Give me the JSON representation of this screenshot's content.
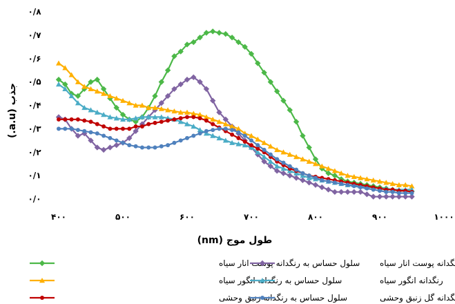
{
  "chart_data": {
    "type": "line",
    "xlabel": "طول موج (nm)",
    "ylabel": "جذب (a.u.)",
    "xlim": [
      400,
      1000
    ],
    "ylim": [
      0,
      0.8
    ],
    "x_ticks": [
      "۴۰۰",
      "۵۰۰",
      "۶۰۰",
      "۷۰۰",
      "۸۰۰",
      "۹۰۰",
      "۱۰۰۰"
    ],
    "x_tick_values": [
      400,
      500,
      600,
      700,
      800,
      900,
      1000
    ],
    "y_ticks": [
      "۰/۰",
      "۰/۱",
      "۰/۲",
      "۰/۳",
      "۰/۴",
      "۰/۵",
      "۰/۶",
      "۰/۷",
      "۰/۸"
    ],
    "y_tick_values": [
      0,
      0.1,
      0.2,
      0.3,
      0.4,
      0.5,
      0.6,
      0.7,
      0.8
    ],
    "grid": false,
    "legend_position": "bottom",
    "series": [
      {
        "name": "سلول حساس به رنگدانه پوست انار سیاه",
        "color": "#4cb848",
        "marker": "diamond",
        "x": [
          400,
          410,
          420,
          430,
          440,
          450,
          460,
          470,
          480,
          490,
          500,
          510,
          520,
          530,
          540,
          550,
          560,
          570,
          580,
          590,
          600,
          610,
          620,
          630,
          640,
          650,
          660,
          670,
          680,
          690,
          700,
          710,
          720,
          730,
          740,
          750,
          760,
          770,
          780,
          790,
          800,
          810,
          820,
          830,
          840,
          850,
          860,
          870,
          880,
          890,
          900,
          910,
          920,
          930,
          940,
          950
        ],
        "y": [
          0.51,
          0.49,
          0.45,
          0.44,
          0.47,
          0.5,
          0.51,
          0.47,
          0.43,
          0.39,
          0.36,
          0.34,
          0.33,
          0.35,
          0.39,
          0.44,
          0.5,
          0.55,
          0.61,
          0.63,
          0.66,
          0.67,
          0.69,
          0.71,
          0.716,
          0.71,
          0.705,
          0.69,
          0.67,
          0.65,
          0.62,
          0.58,
          0.54,
          0.5,
          0.46,
          0.42,
          0.38,
          0.33,
          0.27,
          0.22,
          0.17,
          0.13,
          0.11,
          0.1,
          0.085,
          0.075,
          0.07,
          0.065,
          0.06,
          0.055,
          0.05,
          0.045,
          0.04,
          0.035,
          0.035,
          0.033
        ]
      },
      {
        "name": "رنگدانه پوست انار سیاه",
        "color": "#8064a2",
        "marker": "diamond",
        "x": [
          400,
          410,
          420,
          430,
          440,
          450,
          460,
          470,
          480,
          490,
          500,
          510,
          520,
          530,
          540,
          550,
          560,
          570,
          580,
          590,
          600,
          610,
          620,
          630,
          640,
          650,
          660,
          670,
          680,
          690,
          700,
          710,
          720,
          730,
          740,
          750,
          760,
          770,
          780,
          790,
          800,
          810,
          820,
          830,
          840,
          850,
          860,
          870,
          880,
          890,
          900,
          910,
          920,
          930,
          940,
          950
        ],
        "y": [
          0.35,
          0.34,
          0.3,
          0.27,
          0.28,
          0.25,
          0.22,
          0.21,
          0.22,
          0.23,
          0.24,
          0.26,
          0.29,
          0.32,
          0.35,
          0.38,
          0.41,
          0.44,
          0.47,
          0.49,
          0.51,
          0.52,
          0.5,
          0.47,
          0.42,
          0.37,
          0.34,
          0.31,
          0.28,
          0.25,
          0.22,
          0.19,
          0.16,
          0.14,
          0.12,
          0.11,
          0.1,
          0.09,
          0.08,
          0.07,
          0.06,
          0.05,
          0.04,
          0.03,
          0.03,
          0.03,
          0.03,
          0.03,
          0.02,
          0.01,
          0.01,
          0.01,
          0.01,
          0.01,
          0.01,
          0.01
        ]
      },
      {
        "name": "سلول حساس به رنگدانه انگور سیاه",
        "color": "#ffb000",
        "marker": "triangle",
        "x": [
          400,
          410,
          420,
          430,
          440,
          450,
          460,
          470,
          480,
          490,
          500,
          510,
          520,
          530,
          540,
          550,
          560,
          570,
          580,
          590,
          600,
          610,
          620,
          630,
          640,
          650,
          660,
          670,
          680,
          690,
          700,
          710,
          720,
          730,
          740,
          750,
          760,
          770,
          780,
          790,
          800,
          810,
          820,
          830,
          840,
          850,
          860,
          870,
          880,
          890,
          900,
          910,
          920,
          930,
          940,
          950
        ],
        "y": [
          0.58,
          0.56,
          0.53,
          0.5,
          0.48,
          0.47,
          0.46,
          0.45,
          0.44,
          0.43,
          0.42,
          0.41,
          0.4,
          0.4,
          0.39,
          0.39,
          0.385,
          0.38,
          0.375,
          0.37,
          0.37,
          0.365,
          0.36,
          0.35,
          0.34,
          0.33,
          0.32,
          0.31,
          0.3,
          0.28,
          0.27,
          0.255,
          0.24,
          0.225,
          0.21,
          0.2,
          0.19,
          0.18,
          0.17,
          0.16,
          0.15,
          0.14,
          0.13,
          0.12,
          0.11,
          0.1,
          0.095,
          0.09,
          0.085,
          0.08,
          0.075,
          0.07,
          0.065,
          0.06,
          0.06,
          0.055
        ]
      },
      {
        "name": "رنگدانه انگور سیاه",
        "color": "#4bacc6",
        "marker": "triangle",
        "x": [
          400,
          410,
          420,
          430,
          440,
          450,
          460,
          470,
          480,
          490,
          500,
          510,
          520,
          530,
          540,
          550,
          560,
          570,
          580,
          590,
          600,
          610,
          620,
          630,
          640,
          650,
          660,
          670,
          680,
          690,
          700,
          710,
          720,
          730,
          740,
          750,
          760,
          770,
          780,
          790,
          800,
          810,
          820,
          830,
          840,
          850,
          860,
          870,
          880,
          890,
          900,
          910,
          920,
          930,
          940,
          950
        ],
        "y": [
          0.49,
          0.47,
          0.44,
          0.41,
          0.39,
          0.38,
          0.37,
          0.36,
          0.35,
          0.345,
          0.34,
          0.34,
          0.345,
          0.35,
          0.35,
          0.35,
          0.35,
          0.345,
          0.34,
          0.33,
          0.32,
          0.31,
          0.295,
          0.28,
          0.27,
          0.26,
          0.25,
          0.24,
          0.235,
          0.23,
          0.22,
          0.2,
          0.18,
          0.16,
          0.14,
          0.13,
          0.12,
          0.11,
          0.1,
          0.09,
          0.085,
          0.08,
          0.075,
          0.07,
          0.065,
          0.06,
          0.06,
          0.055,
          0.05,
          0.05,
          0.045,
          0.045,
          0.04,
          0.04,
          0.04,
          0.04
        ]
      },
      {
        "name": "سلول حساس به رنگدانه زنبق وحشی",
        "color": "#c00000",
        "marker": "circle",
        "x": [
          400,
          410,
          420,
          430,
          440,
          450,
          460,
          470,
          480,
          490,
          500,
          510,
          520,
          530,
          540,
          550,
          560,
          570,
          580,
          590,
          600,
          610,
          620,
          630,
          640,
          650,
          660,
          670,
          680,
          690,
          700,
          710,
          720,
          730,
          740,
          750,
          760,
          770,
          780,
          790,
          800,
          810,
          820,
          830,
          840,
          850,
          860,
          870,
          880,
          890,
          900,
          910,
          920,
          930,
          940,
          950
        ],
        "y": [
          0.34,
          0.34,
          0.34,
          0.34,
          0.335,
          0.33,
          0.32,
          0.31,
          0.3,
          0.3,
          0.3,
          0.3,
          0.31,
          0.31,
          0.32,
          0.325,
          0.33,
          0.335,
          0.34,
          0.345,
          0.35,
          0.35,
          0.345,
          0.335,
          0.32,
          0.305,
          0.29,
          0.275,
          0.26,
          0.245,
          0.23,
          0.215,
          0.2,
          0.18,
          0.16,
          0.145,
          0.13,
          0.12,
          0.11,
          0.1,
          0.095,
          0.09,
          0.085,
          0.08,
          0.075,
          0.07,
          0.065,
          0.06,
          0.055,
          0.05,
          0.045,
          0.04,
          0.04,
          0.035,
          0.035,
          0.03
        ]
      },
      {
        "name": "رنگدانه گل زنبق وحشی",
        "color": "#4f81bd",
        "marker": "circle",
        "x": [
          400,
          410,
          420,
          430,
          440,
          450,
          460,
          470,
          480,
          490,
          500,
          510,
          520,
          530,
          540,
          550,
          560,
          570,
          580,
          590,
          600,
          610,
          620,
          630,
          640,
          650,
          660,
          670,
          680,
          690,
          700,
          710,
          720,
          730,
          740,
          750,
          760,
          770,
          780,
          790,
          800,
          810,
          820,
          830,
          840,
          850,
          860,
          870,
          880,
          890,
          900,
          910,
          920,
          930,
          940,
          950
        ],
        "y": [
          0.3,
          0.3,
          0.3,
          0.295,
          0.29,
          0.285,
          0.28,
          0.27,
          0.26,
          0.25,
          0.24,
          0.23,
          0.225,
          0.22,
          0.22,
          0.22,
          0.225,
          0.23,
          0.24,
          0.25,
          0.26,
          0.27,
          0.28,
          0.29,
          0.295,
          0.3,
          0.3,
          0.295,
          0.285,
          0.27,
          0.25,
          0.23,
          0.21,
          0.19,
          0.17,
          0.155,
          0.14,
          0.125,
          0.11,
          0.1,
          0.09,
          0.08,
          0.075,
          0.07,
          0.065,
          0.06,
          0.055,
          0.05,
          0.045,
          0.04,
          0.035,
          0.03,
          0.03,
          0.025,
          0.025,
          0.025
        ]
      }
    ]
  }
}
